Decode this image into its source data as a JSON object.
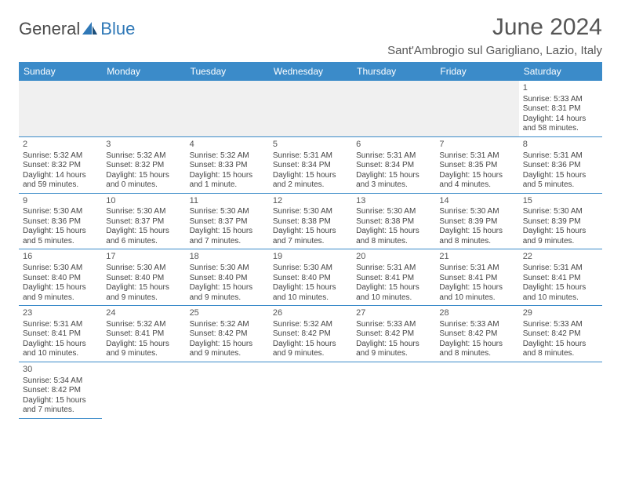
{
  "logo": {
    "part1": "General",
    "part2": "Blue"
  },
  "header": {
    "month_title": "June 2024",
    "location": "Sant'Ambrogio sul Garigliano, Lazio, Italy"
  },
  "colors": {
    "header_blue": "#3b8bc9",
    "logo_blue": "#2f78b7",
    "text_gray": "#555555",
    "row_border": "#3b8bc9",
    "blank_bg": "#f0f0f0"
  },
  "weekdays": [
    "Sunday",
    "Monday",
    "Tuesday",
    "Wednesday",
    "Thursday",
    "Friday",
    "Saturday"
  ],
  "weeks": [
    [
      null,
      null,
      null,
      null,
      null,
      null,
      {
        "d": "1",
        "sr": "Sunrise: 5:33 AM",
        "ss": "Sunset: 8:31 PM",
        "dl1": "Daylight: 14 hours",
        "dl2": "and 58 minutes."
      }
    ],
    [
      {
        "d": "2",
        "sr": "Sunrise: 5:32 AM",
        "ss": "Sunset: 8:32 PM",
        "dl1": "Daylight: 14 hours",
        "dl2": "and 59 minutes."
      },
      {
        "d": "3",
        "sr": "Sunrise: 5:32 AM",
        "ss": "Sunset: 8:32 PM",
        "dl1": "Daylight: 15 hours",
        "dl2": "and 0 minutes."
      },
      {
        "d": "4",
        "sr": "Sunrise: 5:32 AM",
        "ss": "Sunset: 8:33 PM",
        "dl1": "Daylight: 15 hours",
        "dl2": "and 1 minute."
      },
      {
        "d": "5",
        "sr": "Sunrise: 5:31 AM",
        "ss": "Sunset: 8:34 PM",
        "dl1": "Daylight: 15 hours",
        "dl2": "and 2 minutes."
      },
      {
        "d": "6",
        "sr": "Sunrise: 5:31 AM",
        "ss": "Sunset: 8:34 PM",
        "dl1": "Daylight: 15 hours",
        "dl2": "and 3 minutes."
      },
      {
        "d": "7",
        "sr": "Sunrise: 5:31 AM",
        "ss": "Sunset: 8:35 PM",
        "dl1": "Daylight: 15 hours",
        "dl2": "and 4 minutes."
      },
      {
        "d": "8",
        "sr": "Sunrise: 5:31 AM",
        "ss": "Sunset: 8:36 PM",
        "dl1": "Daylight: 15 hours",
        "dl2": "and 5 minutes."
      }
    ],
    [
      {
        "d": "9",
        "sr": "Sunrise: 5:30 AM",
        "ss": "Sunset: 8:36 PM",
        "dl1": "Daylight: 15 hours",
        "dl2": "and 5 minutes."
      },
      {
        "d": "10",
        "sr": "Sunrise: 5:30 AM",
        "ss": "Sunset: 8:37 PM",
        "dl1": "Daylight: 15 hours",
        "dl2": "and 6 minutes."
      },
      {
        "d": "11",
        "sr": "Sunrise: 5:30 AM",
        "ss": "Sunset: 8:37 PM",
        "dl1": "Daylight: 15 hours",
        "dl2": "and 7 minutes."
      },
      {
        "d": "12",
        "sr": "Sunrise: 5:30 AM",
        "ss": "Sunset: 8:38 PM",
        "dl1": "Daylight: 15 hours",
        "dl2": "and 7 minutes."
      },
      {
        "d": "13",
        "sr": "Sunrise: 5:30 AM",
        "ss": "Sunset: 8:38 PM",
        "dl1": "Daylight: 15 hours",
        "dl2": "and 8 minutes."
      },
      {
        "d": "14",
        "sr": "Sunrise: 5:30 AM",
        "ss": "Sunset: 8:39 PM",
        "dl1": "Daylight: 15 hours",
        "dl2": "and 8 minutes."
      },
      {
        "d": "15",
        "sr": "Sunrise: 5:30 AM",
        "ss": "Sunset: 8:39 PM",
        "dl1": "Daylight: 15 hours",
        "dl2": "and 9 minutes."
      }
    ],
    [
      {
        "d": "16",
        "sr": "Sunrise: 5:30 AM",
        "ss": "Sunset: 8:40 PM",
        "dl1": "Daylight: 15 hours",
        "dl2": "and 9 minutes."
      },
      {
        "d": "17",
        "sr": "Sunrise: 5:30 AM",
        "ss": "Sunset: 8:40 PM",
        "dl1": "Daylight: 15 hours",
        "dl2": "and 9 minutes."
      },
      {
        "d": "18",
        "sr": "Sunrise: 5:30 AM",
        "ss": "Sunset: 8:40 PM",
        "dl1": "Daylight: 15 hours",
        "dl2": "and 9 minutes."
      },
      {
        "d": "19",
        "sr": "Sunrise: 5:30 AM",
        "ss": "Sunset: 8:40 PM",
        "dl1": "Daylight: 15 hours",
        "dl2": "and 10 minutes."
      },
      {
        "d": "20",
        "sr": "Sunrise: 5:31 AM",
        "ss": "Sunset: 8:41 PM",
        "dl1": "Daylight: 15 hours",
        "dl2": "and 10 minutes."
      },
      {
        "d": "21",
        "sr": "Sunrise: 5:31 AM",
        "ss": "Sunset: 8:41 PM",
        "dl1": "Daylight: 15 hours",
        "dl2": "and 10 minutes."
      },
      {
        "d": "22",
        "sr": "Sunrise: 5:31 AM",
        "ss": "Sunset: 8:41 PM",
        "dl1": "Daylight: 15 hours",
        "dl2": "and 10 minutes."
      }
    ],
    [
      {
        "d": "23",
        "sr": "Sunrise: 5:31 AM",
        "ss": "Sunset: 8:41 PM",
        "dl1": "Daylight: 15 hours",
        "dl2": "and 10 minutes."
      },
      {
        "d": "24",
        "sr": "Sunrise: 5:32 AM",
        "ss": "Sunset: 8:41 PM",
        "dl1": "Daylight: 15 hours",
        "dl2": "and 9 minutes."
      },
      {
        "d": "25",
        "sr": "Sunrise: 5:32 AM",
        "ss": "Sunset: 8:42 PM",
        "dl1": "Daylight: 15 hours",
        "dl2": "and 9 minutes."
      },
      {
        "d": "26",
        "sr": "Sunrise: 5:32 AM",
        "ss": "Sunset: 8:42 PM",
        "dl1": "Daylight: 15 hours",
        "dl2": "and 9 minutes."
      },
      {
        "d": "27",
        "sr": "Sunrise: 5:33 AM",
        "ss": "Sunset: 8:42 PM",
        "dl1": "Daylight: 15 hours",
        "dl2": "and 9 minutes."
      },
      {
        "d": "28",
        "sr": "Sunrise: 5:33 AM",
        "ss": "Sunset: 8:42 PM",
        "dl1": "Daylight: 15 hours",
        "dl2": "and 8 minutes."
      },
      {
        "d": "29",
        "sr": "Sunrise: 5:33 AM",
        "ss": "Sunset: 8:42 PM",
        "dl1": "Daylight: 15 hours",
        "dl2": "and 8 minutes."
      }
    ],
    [
      {
        "d": "30",
        "sr": "Sunrise: 5:34 AM",
        "ss": "Sunset: 8:42 PM",
        "dl1": "Daylight: 15 hours",
        "dl2": "and 7 minutes."
      },
      null,
      null,
      null,
      null,
      null,
      null
    ]
  ]
}
